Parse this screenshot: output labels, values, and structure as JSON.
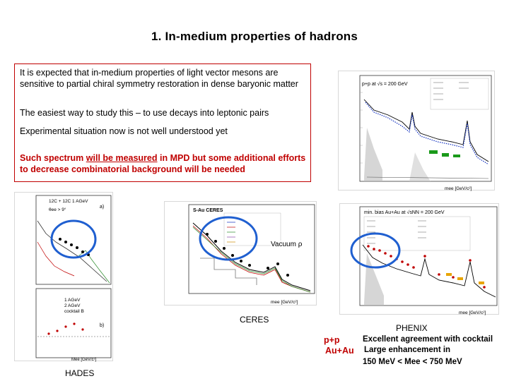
{
  "slide": {
    "title": "1. In-medium properties of hadrons"
  },
  "textbox": {
    "para1": "It is expected that in-medium properties of light vector mesons are sensitive to partial chiral symmetry restoration in dense baryonic matter",
    "para2": "The easiest way to study this – to use decays into leptonic pairs",
    "para3": "Experimental situation now is not well understood yet",
    "para4_a": "Such spectrum ",
    "para4_b": "will be measured",
    "para4_c": " in MPD but some additional efforts to decrease combinatorial background will be needed"
  },
  "labels": {
    "ceres": "CERES",
    "hades": "HADES",
    "phenix": "PHENIX",
    "vacuum": "Vacuum ρ",
    "pp": "p+p",
    "pp_note": "Excellent agreement with cocktail",
    "auau": "Au+Au",
    "auau_note": "Large enhancement in",
    "mass_range": "150 MeV < Mee < 750 MeV"
  },
  "figures": {
    "phenix_pp_legend": "p+p at √s = 200 GeV",
    "phenix_auau_legend": "min. bias Au+Au at √sNN = 200 GeV",
    "ceres_legend": "S-Au   CERES",
    "hades_legend_1": "12C + 12C 1 AGeV",
    "hades_legend_2": "θee > 9°",
    "hades_legend_3": "1 AGeV",
    "hades_legend_4": "2 AGeV",
    "hades_legend_5": "cocktail B",
    "hades_panel_a": "a)",
    "hades_panel_b": "b)",
    "phenix_xaxis": "mee [GeV/c²]",
    "ceres_xaxis": "mee [GeV/c²]",
    "hades_xaxis": "Mee [GeV/c²]"
  },
  "colors": {
    "accent_red": "#c00000",
    "highlight_blue": "#1f5fd0",
    "data_blue": "#1030c0"
  }
}
